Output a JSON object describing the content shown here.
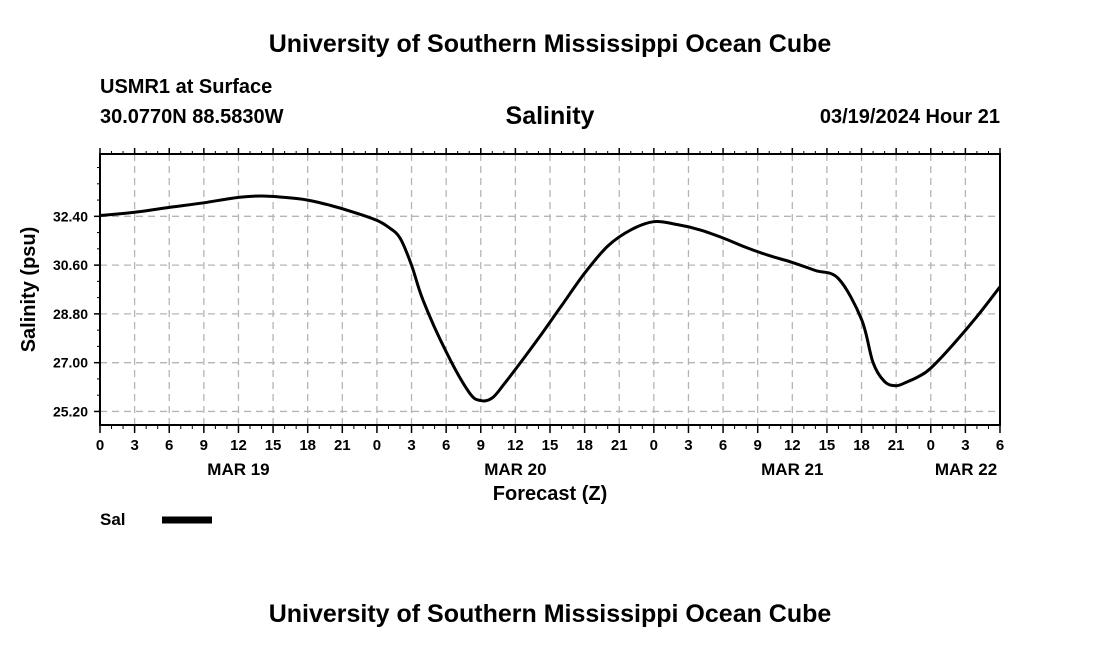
{
  "header": {
    "title_top": "University of Southern Mississippi Ocean Cube",
    "title_bottom": "University of Southern Mississippi Ocean Cube",
    "station": "USMR1 at Surface",
    "coords": "30.0770N  88.5830W",
    "chart_title": "Salinity",
    "datetime": "03/19/2024 Hour 21"
  },
  "legend": {
    "label": "Sal",
    "color": "#000000"
  },
  "chart_data": {
    "type": "line",
    "title": "Salinity",
    "xlabel": "Forecast (Z)",
    "ylabel": "Salinity (psu)",
    "ylim": [
      24.7,
      34.7
    ],
    "xlim": [
      0,
      78
    ],
    "x_unit": "hours from MAR 19 00Z",
    "yticks": [
      25.2,
      27.0,
      28.8,
      30.6,
      32.4
    ],
    "ytick_labels": [
      "25.20",
      "27.00",
      "28.80",
      "30.60",
      "32.40"
    ],
    "xticks": [
      0,
      3,
      6,
      9,
      12,
      15,
      18,
      21,
      24,
      27,
      30,
      33,
      36,
      39,
      42,
      45,
      48,
      51,
      54,
      57,
      60,
      63,
      66,
      69,
      72,
      75,
      78
    ],
    "xtick_labels": [
      "0",
      "3",
      "6",
      "9",
      "12",
      "15",
      "18",
      "21",
      "0",
      "3",
      "6",
      "9",
      "12",
      "15",
      "18",
      "21",
      "0",
      "3",
      "6",
      "9",
      "12",
      "15",
      "18",
      "21",
      "0",
      "3",
      "6"
    ],
    "date_labels": [
      {
        "x": 12,
        "text": "MAR 19"
      },
      {
        "x": 36,
        "text": "MAR 20"
      },
      {
        "x": 60,
        "text": "MAR 21"
      },
      {
        "x": 78,
        "text": "MAR 22"
      }
    ],
    "grid": true,
    "series": [
      {
        "name": "Sal",
        "color": "#000000",
        "x": [
          0,
          3,
          6,
          9,
          12,
          14,
          16,
          18,
          20,
          22,
          24,
          25,
          26,
          27,
          28,
          30,
          32,
          33,
          34,
          35,
          36,
          38,
          40,
          42,
          44,
          46,
          48,
          50,
          52,
          54,
          56,
          58,
          60,
          62,
          64,
          66,
          67,
          68,
          69,
          70,
          71,
          72,
          74,
          76,
          78
        ],
        "values": [
          32.43,
          32.55,
          32.73,
          32.9,
          33.1,
          33.15,
          33.1,
          33.0,
          32.8,
          32.55,
          32.25,
          32.0,
          31.6,
          30.6,
          29.3,
          27.4,
          25.9,
          25.6,
          25.7,
          26.2,
          26.75,
          27.9,
          29.1,
          30.3,
          31.3,
          31.9,
          32.2,
          32.1,
          31.9,
          31.6,
          31.25,
          30.95,
          30.7,
          30.4,
          30.1,
          28.6,
          27.0,
          26.3,
          26.15,
          26.3,
          26.5,
          26.8,
          27.7,
          28.7,
          29.8
        ]
      }
    ]
  }
}
